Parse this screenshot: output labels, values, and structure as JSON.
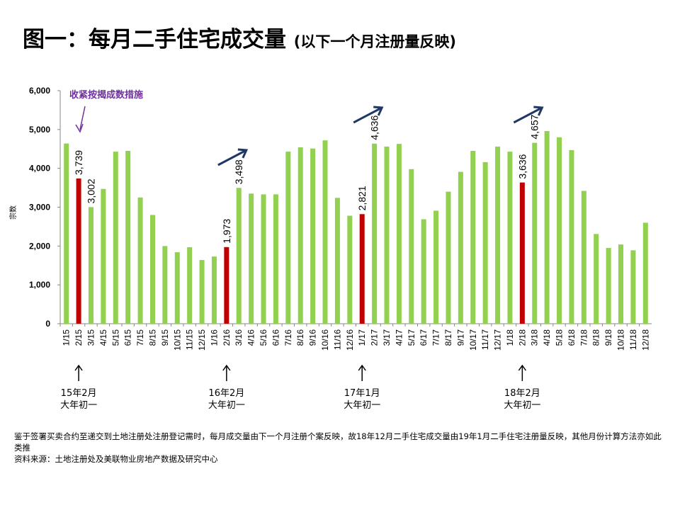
{
  "title": {
    "main": "图一：每月二手住宅成交量",
    "sub": "(以下一个月注册量反映)"
  },
  "chart_data": {
    "type": "bar",
    "title": "图一：每月二手住宅成交量 (以下一个月注册量反映)",
    "ylabel": "宗数",
    "xlabel": "",
    "ylim": [
      0,
      6000
    ],
    "yticks": [
      "0",
      "1,000",
      "2,000",
      "3,000",
      "4,000",
      "5,000",
      "6,000"
    ],
    "grid": false,
    "categories": [
      "1/15",
      "2/15",
      "3/15",
      "4/15",
      "5/15",
      "6/15",
      "7/15",
      "8/15",
      "9/15",
      "10/15",
      "11/15",
      "12/15",
      "1/16",
      "2/16",
      "3/16",
      "4/16",
      "5/16",
      "6/16",
      "7/16",
      "8/16",
      "9/16",
      "10/16",
      "11/16",
      "12/16",
      "1/17",
      "2/17",
      "3/17",
      "4/17",
      "5/17",
      "6/17",
      "7/17",
      "8/17",
      "9/17",
      "10/17",
      "11/17",
      "12/17",
      "1/18",
      "2/18",
      "3/18",
      "4/18",
      "5/18",
      "6/18",
      "7/18",
      "8/18",
      "9/18",
      "10/18",
      "11/18",
      "12/18"
    ],
    "values": [
      4640,
      3739,
      3002,
      3470,
      4430,
      4450,
      3250,
      2800,
      2000,
      1840,
      1970,
      1640,
      1730,
      1973,
      3498,
      3350,
      3330,
      3330,
      4430,
      4540,
      4510,
      4720,
      3240,
      2780,
      2821,
      4636,
      4560,
      4630,
      3980,
      2690,
      2910,
      3400,
      3910,
      4450,
      4160,
      4560,
      4430,
      3636,
      4657,
      4960,
      4800,
      4470,
      3420,
      2310,
      1950,
      2040,
      1890,
      2600
    ],
    "highlighted": [
      "2/15",
      "2/16",
      "1/17",
      "2/18"
    ],
    "data_labels": [
      {
        "category": "2/15",
        "text": "3,739"
      },
      {
        "category": "3/15",
        "text": "3,002"
      },
      {
        "category": "2/16",
        "text": "1,973"
      },
      {
        "category": "3/16",
        "text": "3,498"
      },
      {
        "category": "1/17",
        "text": "2,821"
      },
      {
        "category": "2/17",
        "text": "4,636"
      },
      {
        "category": "2/18",
        "text": "3,636"
      },
      {
        "category": "3/18",
        "text": "4,657"
      }
    ],
    "colors": {
      "bar": "#92D050",
      "highlight": "#C00000",
      "trend_arrow": "#1F3864",
      "annotation": "#7030A0"
    },
    "annotations": {
      "measure": {
        "text": "收紧按揭成数措施",
        "category": "2/15"
      },
      "trend_arrows": [
        "2/16",
        "1/17",
        "2/18"
      ],
      "new_year": [
        {
          "category": "2/15",
          "line1": "15年2月",
          "line2": "大年初一"
        },
        {
          "category": "2/16",
          "line1": "16年2月",
          "line2": "大年初一"
        },
        {
          "category": "1/17",
          "line1": "17年1月",
          "line2": "大年初一"
        },
        {
          "category": "2/18",
          "line1": "18年2月",
          "line2": "大年初一"
        }
      ]
    }
  },
  "notes": [
    "鉴于签署买卖合约至递交到土地注册处注册登记需时，每月成交量由下一个月注册个案反映，故18年12月二手住宅成交量由19年1月二手住宅注册量反映，其他月份计算方法亦如此类推",
    "资料来源：土地注册处及美联物业房地产数据及研究中心"
  ]
}
